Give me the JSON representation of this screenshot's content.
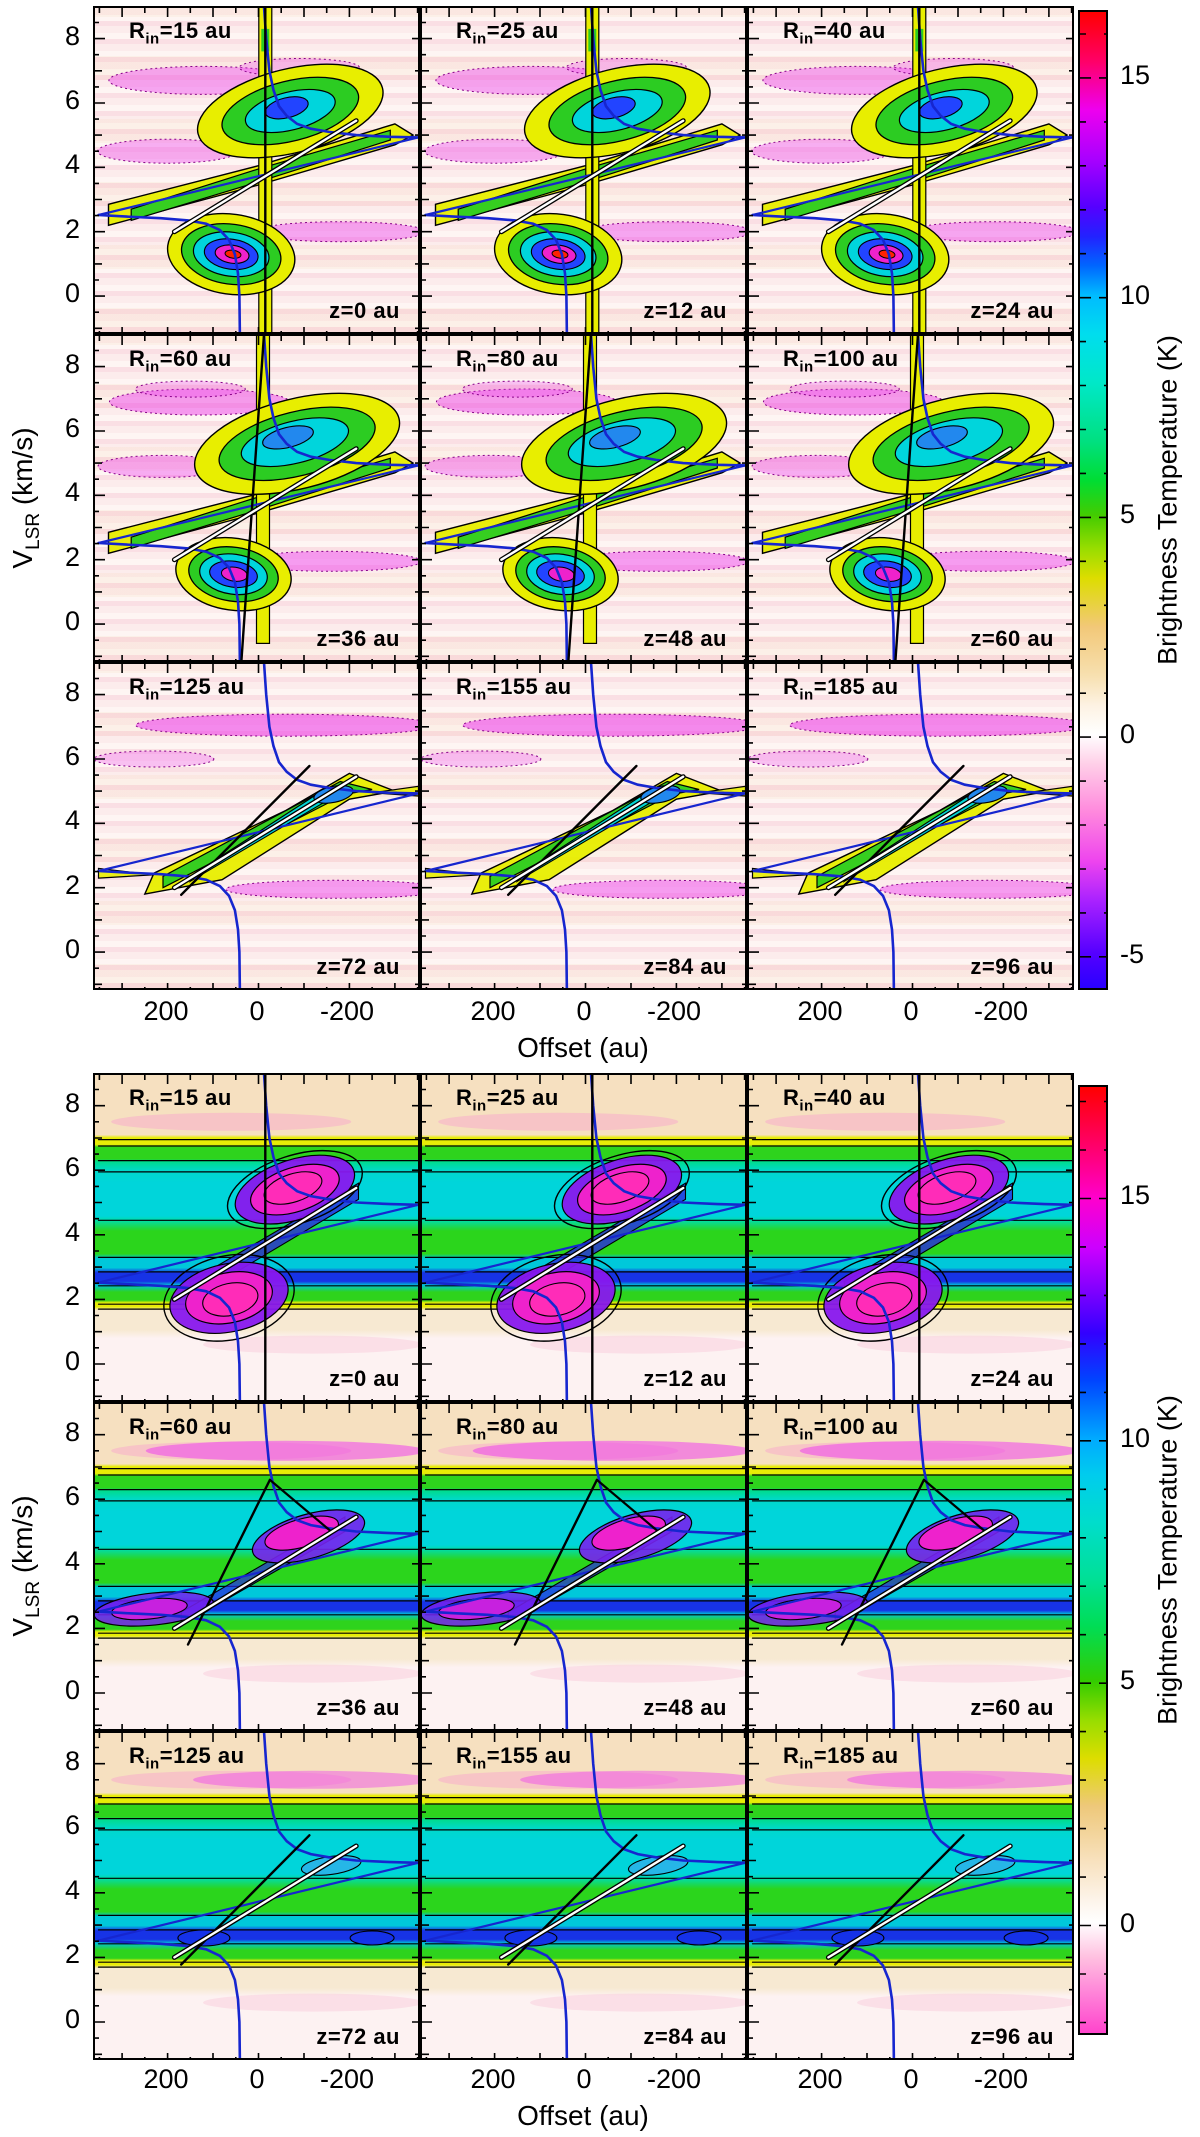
{
  "axes": {
    "xlabel": "Offset (au)",
    "ylabel_base": "V",
    "ylabel_sub": "LSR",
    "ylabel_rest": " (km/s)",
    "x_tick_labels": [
      "200",
      "0",
      "-200"
    ],
    "y_tick_labels": [
      "8",
      "6",
      "4",
      "2",
      "0"
    ]
  },
  "labels": {
    "rin_base": "R",
    "rin_sub": "in",
    "eq": "=",
    "unit": " au",
    "z_prefix": "z="
  },
  "colorbar": {
    "title": "Brightness Temperature (K)"
  },
  "figures": [
    {
      "name": "pv-grid-top",
      "colorbar_ticks": [
        {
          "label": "15",
          "value": 15
        },
        {
          "label": "10",
          "value": 10
        },
        {
          "label": "5",
          "value": 5
        },
        {
          "label": "0",
          "value": 0
        },
        {
          "label": "-5",
          "value": -5
        }
      ],
      "panels": [
        {
          "rin": "15",
          "z": "0"
        },
        {
          "rin": "25",
          "z": "12"
        },
        {
          "rin": "40",
          "z": "24"
        },
        {
          "rin": "60",
          "z": "36"
        },
        {
          "rin": "80",
          "z": "48"
        },
        {
          "rin": "100",
          "z": "60"
        },
        {
          "rin": "125",
          "z": "72"
        },
        {
          "rin": "155",
          "z": "84"
        },
        {
          "rin": "185",
          "z": "96"
        }
      ]
    },
    {
      "name": "pv-grid-bottom",
      "colorbar_ticks": [
        {
          "label": "15",
          "value": 15
        },
        {
          "label": "10",
          "value": 10
        },
        {
          "label": "5",
          "value": 5
        },
        {
          "label": "0",
          "value": 0
        }
      ],
      "panels": [
        {
          "rin": "15",
          "z": "0"
        },
        {
          "rin": "25",
          "z": "12"
        },
        {
          "rin": "40",
          "z": "24"
        },
        {
          "rin": "60",
          "z": "36"
        },
        {
          "rin": "80",
          "z": "48"
        },
        {
          "rin": "100",
          "z": "60"
        },
        {
          "rin": "125",
          "z": "72"
        },
        {
          "rin": "155",
          "z": "84"
        },
        {
          "rin": "185",
          "z": "96"
        }
      ]
    }
  ],
  "chart_data": [
    {
      "type": "heatmap",
      "subtype": "position-velocity contour diagram grid",
      "grid": "3x3",
      "title": "",
      "xlabel": "Offset (au)",
      "ylabel": "V_LSR (km/s)",
      "xticks": [
        200,
        0,
        -200
      ],
      "xlim": [
        360,
        -360
      ],
      "yticks": [
        0,
        2,
        4,
        6,
        8
      ],
      "ylim": [
        -1.2,
        9.0
      ],
      "panels": [
        {
          "R_in_au": 15,
          "z_au": 0
        },
        {
          "R_in_au": 25,
          "z_au": 12
        },
        {
          "R_in_au": 40,
          "z_au": 24
        },
        {
          "R_in_au": 60,
          "z_au": 36
        },
        {
          "R_in_au": 80,
          "z_au": 48
        },
        {
          "R_in_au": 100,
          "z_au": 60
        },
        {
          "R_in_au": 125,
          "z_au": 72
        },
        {
          "R_in_au": 155,
          "z_au": 84
        },
        {
          "R_in_au": 185,
          "z_au": 96
        }
      ],
      "colorbar": {
        "label": "Brightness Temperature (K)",
        "ticks": [
          15,
          10,
          5,
          0,
          -5
        ],
        "range_K": [
          -5.8,
          16.5
        ]
      },
      "colormap_colors": [
        "#ff0000",
        "#ff00cc",
        "#9900ff",
        "#2222ff",
        "#00bbff",
        "#00ddcc",
        "#22cc00",
        "#dddd00",
        "#f2c878",
        "#ffffff",
        "#ff88dd",
        "#ee44ee",
        "#aa22ff",
        "#5500ff"
      ],
      "overlays": [
        "Keplerian rotation curve (blue)",
        "disk-envelope diagonal (blue)",
        "ridge fit line (white)",
        "reference line (black)"
      ],
      "description": "Residual-like PV maps on pale pink background; bowtie emission (yellow/green/cyan contours) with peak ~16 K near (+60 au, 1.3 km/s) and ~11 K near (-70 au, 5.7 km/s); dotted magenta patches are negative contours; structure weakens as R_in and z increase."
    },
    {
      "type": "heatmap",
      "subtype": "position-velocity contour diagram grid",
      "grid": "3x3",
      "title": "",
      "xlabel": "Offset (au)",
      "ylabel": "V_LSR (km/s)",
      "xticks": [
        200,
        0,
        -200
      ],
      "xlim": [
        360,
        -360
      ],
      "yticks": [
        0,
        2,
        4,
        6,
        8
      ],
      "ylim": [
        -1.2,
        9.0
      ],
      "panels": [
        {
          "R_in_au": 15,
          "z_au": 0
        },
        {
          "R_in_au": 25,
          "z_au": 12
        },
        {
          "R_in_au": 40,
          "z_au": 24
        },
        {
          "R_in_au": 60,
          "z_au": 36
        },
        {
          "R_in_au": 80,
          "z_au": 48
        },
        {
          "R_in_au": 100,
          "z_au": 60
        },
        {
          "R_in_au": 125,
          "z_au": 72
        },
        {
          "R_in_au": 155,
          "z_au": 84
        },
        {
          "R_in_au": 185,
          "z_au": 96
        }
      ],
      "colorbar": {
        "label": "Brightness Temperature (K)",
        "ticks": [
          15,
          10,
          5,
          0
        ],
        "range_K": [
          -2.3,
          17.3
        ]
      },
      "colormap_colors": [
        "#ff0000",
        "#ff00cc",
        "#9900ff",
        "#2222ff",
        "#00bbff",
        "#00ddcc",
        "#22cc00",
        "#dddd00",
        "#f2c878",
        "#ffffff",
        "#ff88dd",
        "#ff44cc"
      ],
      "overlays": [
        "Keplerian rotation curve (blue)",
        "disk-envelope diagonal (blue)",
        "ridge fit line (white)",
        "reference line (black)"
      ],
      "description": "Full-emission PV maps: horizontal banded background (cream / yellow / green / cyan with dark blue lane at ~2.6 km/s) between 1.8 and 6.9 km/s; magenta peaks ~15-16 K along the velocity-gradient diagonal in the upper rows, fading with increasing R_in and z."
    }
  ]
}
